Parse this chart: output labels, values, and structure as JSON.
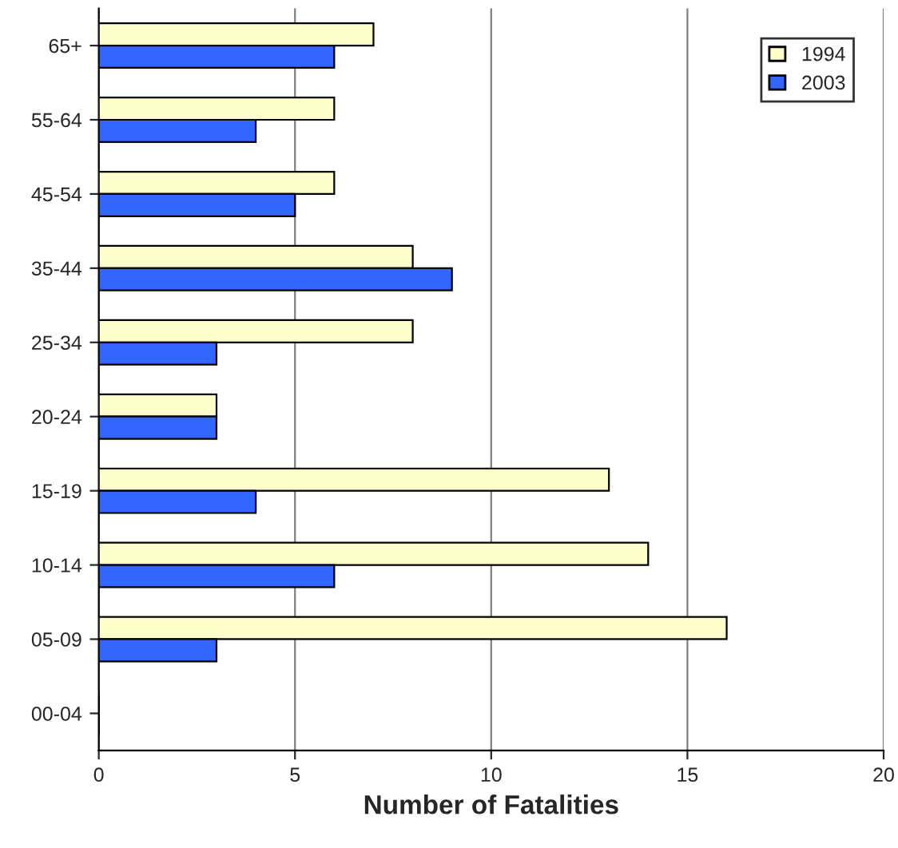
{
  "chart_data": {
    "type": "bar",
    "orientation": "horizontal",
    "xlabel": "Number of Fatalities",
    "categories": [
      "65+",
      "55-64",
      "45-54",
      "35-44",
      "25-34",
      "20-24",
      "15-19",
      "10-14",
      "05-09",
      "00-04"
    ],
    "series": [
      {
        "name": "1994",
        "color": "#ffffcc",
        "values": [
          7,
          6,
          6,
          8,
          8,
          3,
          13,
          14,
          16,
          0
        ]
      },
      {
        "name": "2003",
        "color": "#3366ff",
        "values": [
          6,
          4,
          5,
          9,
          3,
          3,
          4,
          6,
          3,
          0
        ]
      }
    ],
    "xlim": [
      0,
      20
    ],
    "xticks": [
      0,
      5,
      10,
      15,
      20
    ],
    "grid": "x",
    "legend": "top right"
  }
}
